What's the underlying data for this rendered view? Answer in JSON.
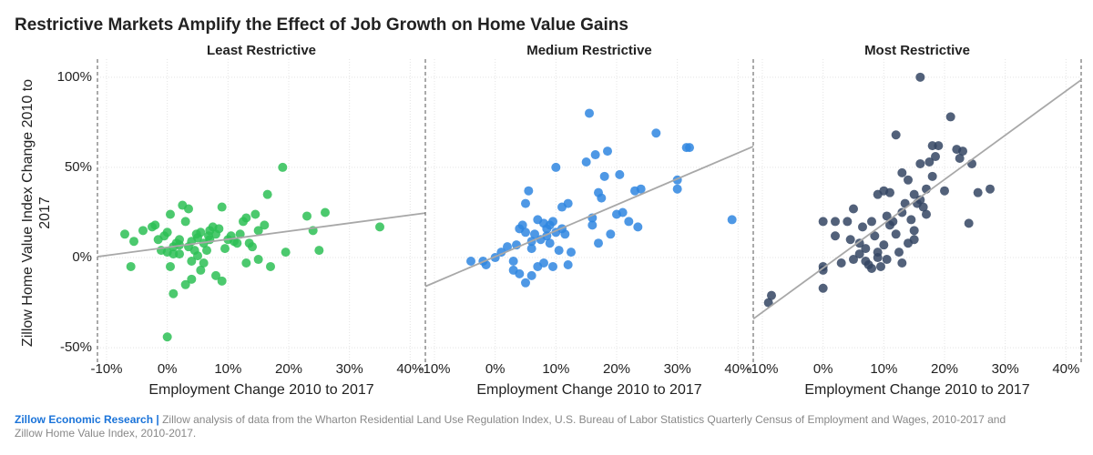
{
  "title": "Restrictive Markets Amplify the Effect of Job Growth on Home Value Gains",
  "footer": {
    "brand": "Zillow Economic Research |",
    "text": "Zillow analysis of data from the Wharton Residential Land Use Regulation Index, U.S. Bureau of Labor Statistics Quarterly Census of Employment and Wages, 2010-2017 and Zillow Home Value Index, 2010-2017."
  },
  "chart_data": [
    {
      "type": "scatter",
      "title": "Least Restrictive",
      "xlabel": "Employment Change 2010 to 2017",
      "ylabel": "Zillow Home Value Index Change 2010 to 2017",
      "color": "#2dbf55",
      "xlim": [
        -11.5,
        42.5
      ],
      "ylim": [
        -59,
        110
      ],
      "xticks": [
        {
          "value": -10,
          "label": "-10%"
        },
        {
          "value": 0,
          "label": "0%"
        },
        {
          "value": 10,
          "label": "10%"
        },
        {
          "value": 20,
          "label": "20%"
        },
        {
          "value": 30,
          "label": "30%"
        },
        {
          "value": 40,
          "label": "40%"
        }
      ],
      "yticks": [
        {
          "value": -50,
          "label": "-50%"
        },
        {
          "value": 0,
          "label": "0%"
        },
        {
          "value": 50,
          "label": "50%"
        },
        {
          "value": 100,
          "label": "100%"
        }
      ],
      "x": [
        -7,
        -6,
        -5.5,
        -4,
        -2.5,
        -2,
        -1.5,
        -1,
        -0.5,
        0,
        0,
        0.5,
        0.5,
        1,
        0,
        1,
        1.5,
        2,
        2,
        2.5,
        3,
        3,
        3.5,
        3.5,
        4,
        4,
        4,
        4.5,
        5,
        5,
        5.5,
        5.5,
        6,
        6,
        6.5,
        7,
        7,
        7.5,
        8,
        8,
        8.5,
        9,
        9,
        9.5,
        10,
        10.5,
        11,
        11.5,
        12,
        12.5,
        13,
        13,
        13.5,
        14,
        14.5,
        15,
        15,
        16,
        16.5,
        17,
        19,
        19.5,
        23,
        24,
        25,
        26,
        35,
        2,
        1,
        4.8,
        6.8
      ],
      "y": [
        13,
        -5,
        9,
        15,
        17,
        18,
        10,
        4,
        12,
        14,
        3,
        24,
        -5,
        -20,
        -44,
        6,
        8,
        2,
        10,
        29,
        20,
        -15,
        27,
        6,
        -12,
        9,
        -2,
        4,
        11,
        1,
        14,
        -7,
        8,
        -3,
        4,
        10,
        15,
        17,
        -10,
        13,
        16,
        -13,
        28,
        5,
        10,
        12,
        9,
        8,
        13,
        20,
        22,
        -3,
        8,
        6,
        24,
        15,
        -1,
        18,
        35,
        -5,
        50,
        3,
        23,
        15,
        4,
        25,
        17,
        7,
        2,
        13,
        12
      ],
      "trend": {
        "x": [
          -11.5,
          42.5
        ],
        "y": [
          0.5,
          24.7
        ]
      }
    },
    {
      "type": "scatter",
      "title": "Medium Restrictive",
      "xlabel": "Employment Change 2010 to 2017",
      "color": "#2f86e0",
      "xlim": [
        -11.5,
        42.5
      ],
      "ylim": [
        -59,
        110
      ],
      "xticks": [
        {
          "value": -10,
          "label": "-10%"
        },
        {
          "value": 0,
          "label": "0%"
        },
        {
          "value": 10,
          "label": "10%"
        },
        {
          "value": 20,
          "label": "20%"
        },
        {
          "value": 30,
          "label": "30%"
        },
        {
          "value": 40,
          "label": "40%"
        }
      ],
      "x": [
        -4,
        -2,
        -1.5,
        0,
        1,
        2,
        3,
        3,
        3.5,
        4,
        4,
        4.5,
        5,
        5,
        5.5,
        5,
        6,
        6,
        6.5,
        7,
        7,
        7.5,
        8,
        8,
        8.5,
        9,
        9,
        9.5,
        9.5,
        10,
        10,
        10.5,
        11,
        11,
        11.5,
        12,
        12,
        12.5,
        15,
        15.5,
        16,
        16,
        16.5,
        17,
        17,
        17.5,
        18,
        18.5,
        19,
        20,
        20.5,
        21,
        22,
        23,
        23.5,
        24,
        26.5,
        30,
        30,
        32,
        31.5,
        39,
        8.5,
        6
      ],
      "y": [
        -2,
        -2,
        -4,
        0,
        3,
        6,
        -2,
        -7,
        7,
        -9,
        16,
        18,
        -14,
        14,
        37,
        30,
        -10,
        5,
        13,
        -5,
        21,
        10,
        19,
        -3,
        16,
        18,
        8,
        20,
        -5,
        50,
        14,
        4,
        28,
        16,
        13,
        30,
        -4,
        3,
        53,
        80,
        22,
        18,
        57,
        36,
        8,
        33,
        45,
        59,
        13,
        24,
        46,
        25,
        20,
        37,
        17,
        38,
        69,
        38,
        43,
        61,
        61,
        21,
        12,
        9
      ],
      "trend": {
        "x": [
          -11.5,
          42.5
        ],
        "y": [
          -16,
          61.6
        ]
      }
    },
    {
      "type": "scatter",
      "title": "Most Restrictive",
      "xlabel": "Employment Change 2010 to 2017",
      "color": "#344563",
      "xlim": [
        -11.5,
        42.5
      ],
      "ylim": [
        -59,
        110
      ],
      "xticks": [
        {
          "value": -10,
          "label": "-10%"
        },
        {
          "value": 0,
          "label": "0%"
        },
        {
          "value": 10,
          "label": "10%"
        },
        {
          "value": 20,
          "label": "20%"
        },
        {
          "value": 30,
          "label": "30%"
        },
        {
          "value": 40,
          "label": "40%"
        }
      ],
      "x": [
        -9,
        -8.5,
        0,
        0,
        0,
        0,
        2,
        3,
        4,
        4.5,
        5,
        5,
        6,
        6.5,
        7,
        7,
        7.5,
        8,
        8,
        8.5,
        9,
        9,
        9.5,
        10,
        10,
        10.5,
        10.5,
        11,
        11,
        11.5,
        12,
        12,
        12.5,
        13,
        13,
        13.5,
        14,
        14,
        14.5,
        15,
        15,
        15.5,
        16,
        16,
        16,
        16.5,
        17,
        17,
        17.5,
        18,
        18,
        18.5,
        19,
        20,
        21,
        22,
        22.5,
        23,
        24,
        24.5,
        25.5,
        27.5,
        15,
        13,
        9,
        6,
        2
      ],
      "y": [
        -25,
        -21,
        -17,
        -5,
        -7,
        20,
        20,
        -3,
        20,
        10,
        -1,
        27,
        2,
        17,
        -2,
        5,
        -4,
        -6,
        20,
        12,
        35,
        0,
        -5,
        37,
        7,
        23,
        -1,
        36,
        18,
        20,
        13,
        68,
        3,
        47,
        25,
        30,
        43,
        8,
        21,
        35,
        15,
        30,
        100,
        52,
        32,
        28,
        38,
        24,
        53,
        62,
        45,
        56,
        62,
        37,
        78,
        60,
        55,
        59,
        19,
        52,
        36,
        38,
        10,
        -3,
        3,
        8,
        12
      ],
      "trend": {
        "x": [
          -11.5,
          42.5
        ],
        "y": [
          -34,
          98.5
        ]
      }
    }
  ]
}
